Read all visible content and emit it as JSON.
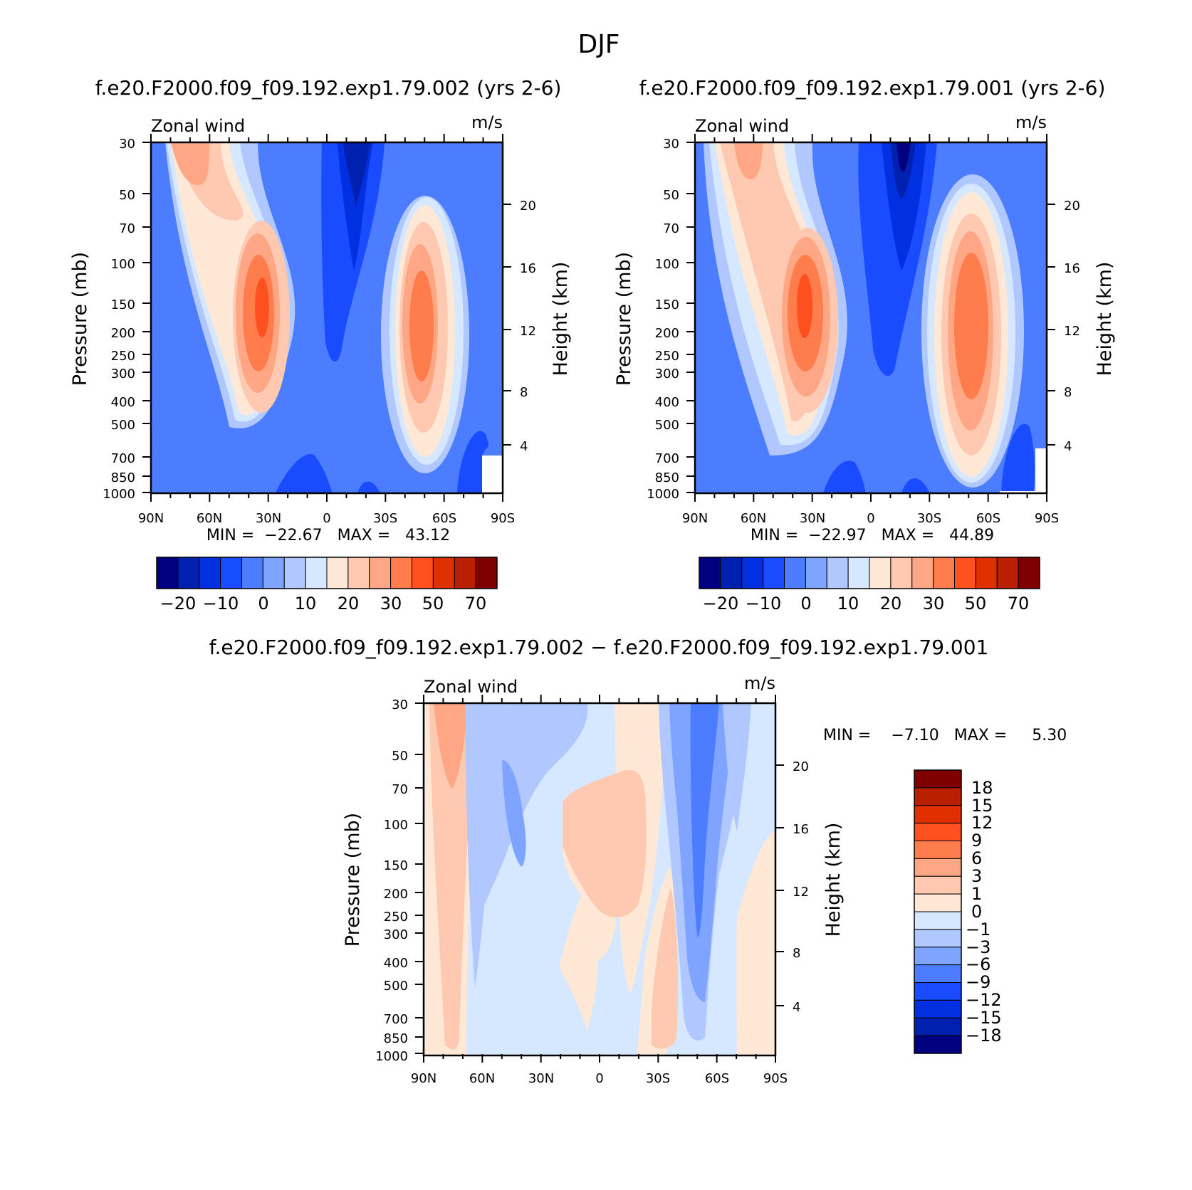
{
  "figure_title": "DJF",
  "colors": {
    "wind_palette": [
      "#000080",
      "#0020b0",
      "#0030e0",
      "#1a4cff",
      "#4c7cff",
      "#7fa4ff",
      "#b0c8ff",
      "#d6e8ff",
      "#ffe8d6",
      "#ffc8b0",
      "#ffa784",
      "#ff7c4c",
      "#ff5020",
      "#e03000",
      "#b82000",
      "#800000"
    ],
    "diff_palette": [
      "#800000",
      "#b82000",
      "#e03000",
      "#ff5020",
      "#ff7c4c",
      "#ffa784",
      "#ffc8b0",
      "#ffe8d6",
      "#d6e8ff",
      "#b0c8ff",
      "#7fa4ff",
      "#4c7cff",
      "#1a4cff",
      "#0030e0",
      "#0020b0",
      "#000080"
    ]
  },
  "chart_data": [
    {
      "type": "heatmap",
      "title": "f.e20.F2000.f09_f09.192.exp1.79.002 (yrs 2-6)",
      "left_label": "Zonal wind",
      "right_label": "m/s",
      "xlabel": "",
      "ylabel": "Pressure (mb)",
      "ylabel_right": "Height (km)",
      "x_ticks": [
        "90N",
        "60N",
        "30N",
        "0",
        "30S",
        "60S",
        "90S"
      ],
      "y_ticks": [
        "30",
        "50",
        "70",
        "100",
        "150",
        "200",
        "250",
        "300",
        "400",
        "500",
        "700",
        "850",
        "1000"
      ],
      "y_ticks_right": [
        "20",
        "16",
        "12",
        "8",
        "4"
      ],
      "stats": "MIN =  −22.67   MAX =   43.12",
      "colorbar_labels": [
        "−20",
        "−10",
        "0",
        "10",
        "20",
        "30",
        "50",
        "70"
      ],
      "features": [
        {
          "lat": 31,
          "p": 180,
          "value": 43.12
        },
        {
          "lat": -50,
          "p": 200,
          "value": 35
        },
        {
          "lat": -19,
          "p": 30,
          "value": -22.67
        }
      ]
    },
    {
      "type": "heatmap",
      "title": "f.e20.F2000.f09_f09.192.exp1.79.001 (yrs 2-6)",
      "left_label": "Zonal wind",
      "right_label": "m/s",
      "xlabel": "",
      "ylabel": "Pressure (mb)",
      "ylabel_right": "Height (km)",
      "x_ticks": [
        "90N",
        "60N",
        "30N",
        "0",
        "30S",
        "60S",
        "90S"
      ],
      "y_ticks": [
        "30",
        "50",
        "70",
        "100",
        "150",
        "200",
        "250",
        "300",
        "400",
        "500",
        "700",
        "850",
        "1000"
      ],
      "y_ticks_right": [
        "20",
        "16",
        "12",
        "8",
        "4"
      ],
      "stats": "MIN =  −22.97   MAX =   44.89",
      "colorbar_labels": [
        "−20",
        "−10",
        "0",
        "10",
        "20",
        "30",
        "50",
        "70"
      ],
      "features": [
        {
          "lat": 33,
          "p": 170,
          "value": 44.89
        },
        {
          "lat": -52,
          "p": 200,
          "value": 37
        },
        {
          "lat": -19,
          "p": 30,
          "value": -22.97
        }
      ]
    },
    {
      "type": "heatmap",
      "title": "f.e20.F2000.f09_f09.192.exp1.79.002 − f.e20.F2000.f09_f09.192.exp1.79.001",
      "left_label": "Zonal wind",
      "right_label": "m/s",
      "xlabel": "",
      "ylabel": "Pressure (mb)",
      "ylabel_right": "Height (km)",
      "x_ticks": [
        "90N",
        "60N",
        "30N",
        "0",
        "30S",
        "60S",
        "90S"
      ],
      "y_ticks": [
        "30",
        "50",
        "70",
        "100",
        "150",
        "200",
        "250",
        "300",
        "400",
        "500",
        "700",
        "850",
        "1000"
      ],
      "y_ticks_right": [
        "20",
        "16",
        "12",
        "8",
        "4"
      ],
      "stats": "MIN =    −7.10   MAX =     5.30",
      "colorbar_labels": [
        "18",
        "15",
        "12",
        "9",
        "6",
        "3",
        "1",
        "0",
        "−1",
        "−3",
        "−6",
        "−9",
        "−12",
        "−15",
        "−18"
      ],
      "features": [
        {
          "lat": 79,
          "p": 40,
          "value": 5.3
        },
        {
          "lat": -59,
          "p": 80,
          "value": -7.1
        }
      ]
    }
  ]
}
